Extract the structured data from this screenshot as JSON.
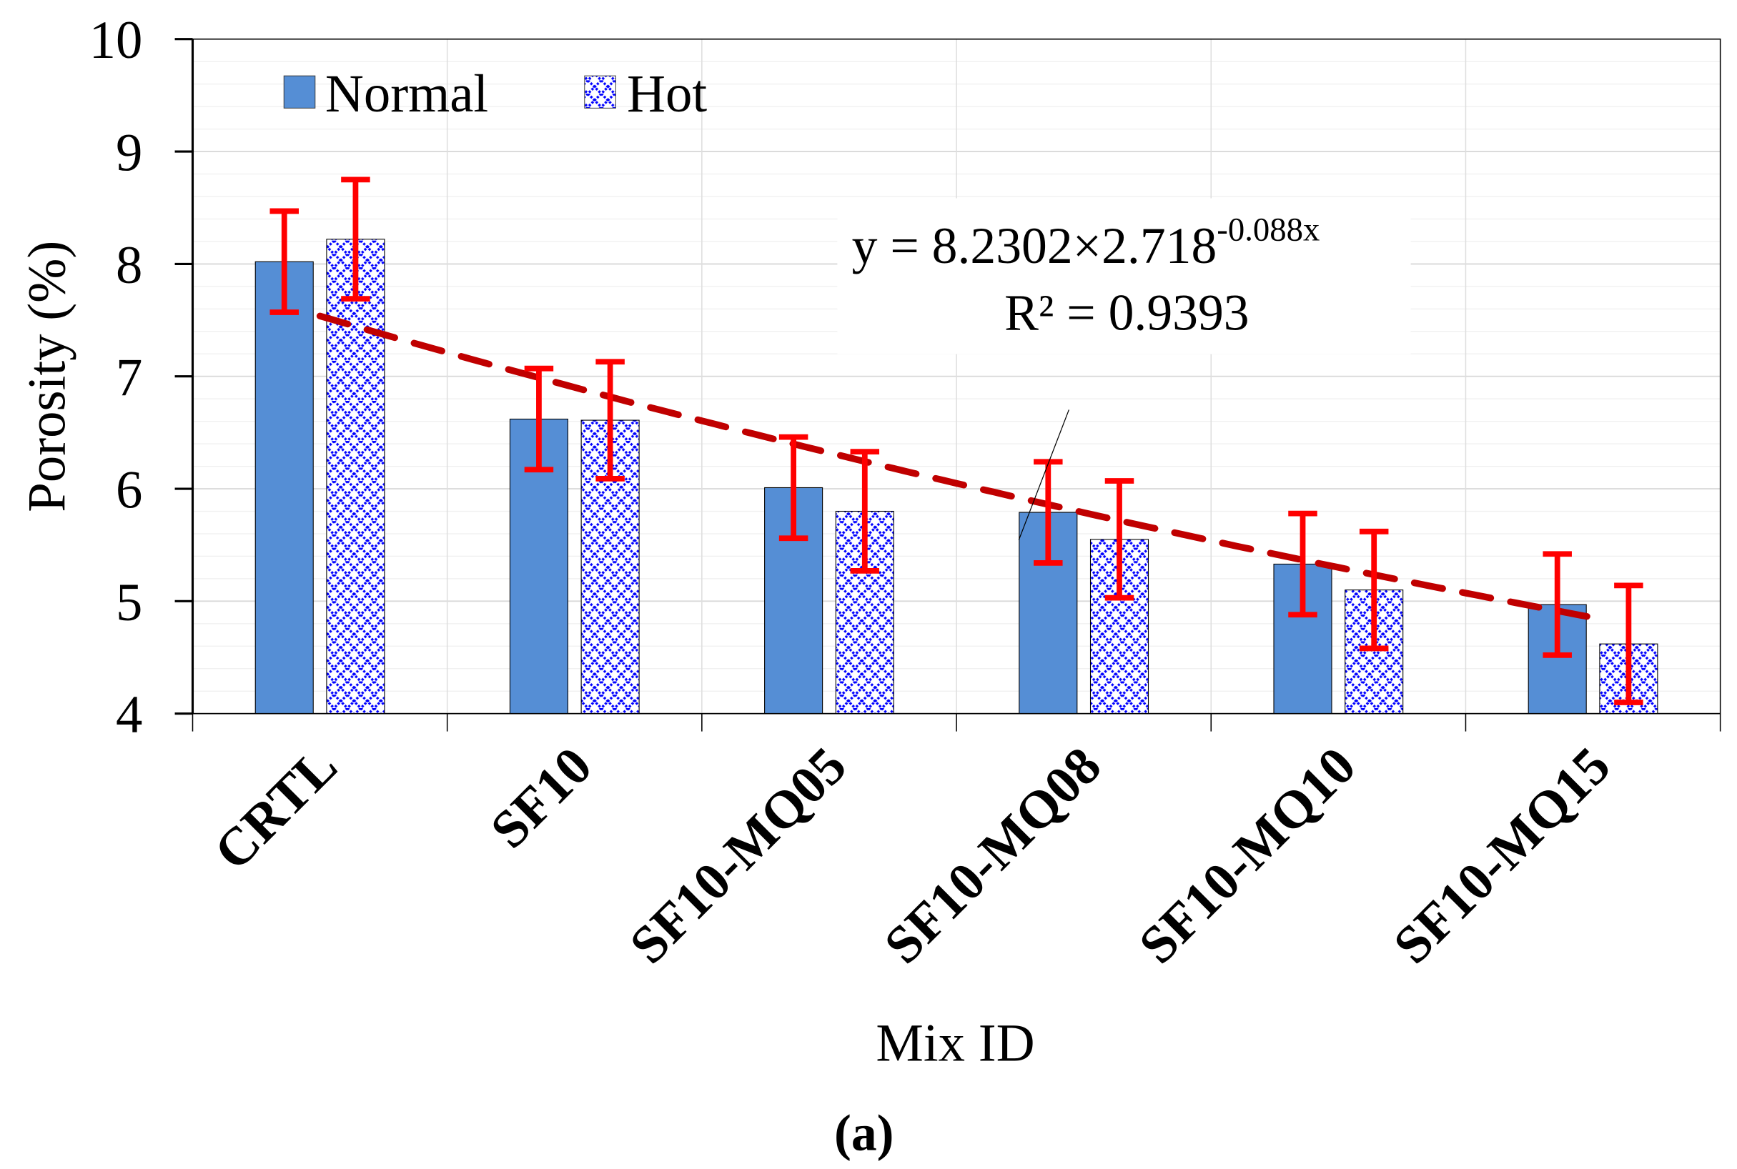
{
  "chart_data": {
    "type": "bar",
    "title": "",
    "panel_label": "(a)",
    "xlabel": "Mix ID",
    "ylabel": "Porosity (%)",
    "ylim": [
      4,
      10
    ],
    "yticks": [
      "4",
      "5",
      "6",
      "7",
      "8",
      "9",
      "10"
    ],
    "grid": true,
    "legend_position": "top-left",
    "categories": [
      "CRTL",
      "SF10",
      "SF10-MQ05",
      "SF10-MQ08",
      "SF10-MQ10",
      "SF10-MQ15"
    ],
    "series": [
      {
        "name": "Normal",
        "color": "#558ed5",
        "values": [
          8.02,
          6.62,
          6.01,
          5.79,
          5.33,
          4.97
        ],
        "errors": [
          0.45,
          0.45,
          0.45,
          0.45,
          0.45,
          0.45
        ]
      },
      {
        "name": "Hot",
        "color": "#0000ff",
        "pattern": "crosshatch",
        "values": [
          8.22,
          6.61,
          5.8,
          5.55,
          5.1,
          4.62
        ],
        "errors": [
          0.53,
          0.52,
          0.53,
          0.52,
          0.52,
          0.52
        ]
      }
    ],
    "error_bar_color": "#ff0000",
    "trendline": {
      "type": "exponential",
      "a": 8.2302,
      "b": -0.088,
      "x_range": [
        1,
        6
      ],
      "color": "#c00000",
      "equation_main": "y = 8.2302×2.718",
      "equation_exp": "-0.088x",
      "r2_label": "R² = 0.9393"
    }
  }
}
